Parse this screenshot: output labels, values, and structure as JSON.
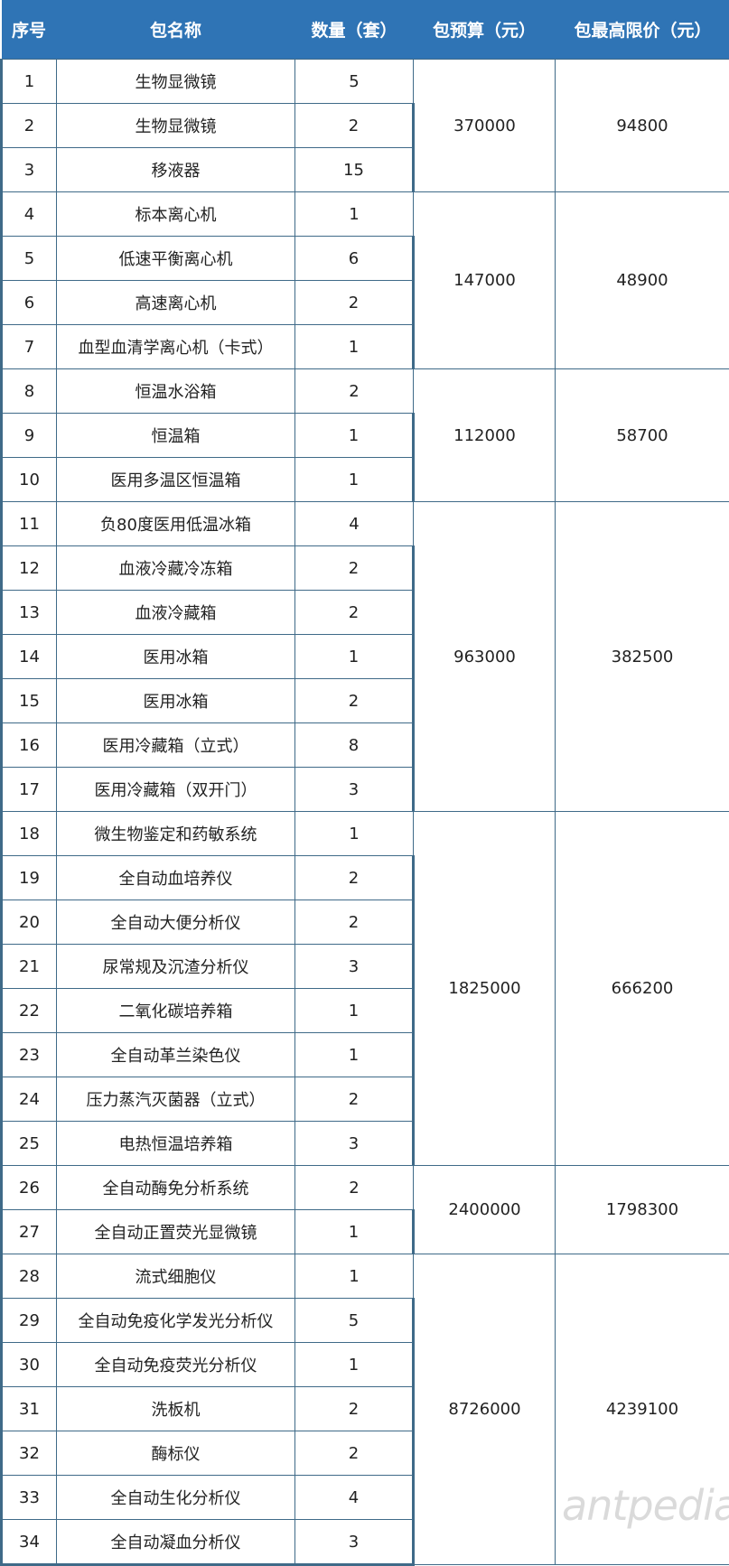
{
  "headers": [
    "序号",
    "包名称",
    "数量（套）",
    "包预算（元）",
    "包最高限价（元）"
  ],
  "groups": [
    {
      "budget": "370000",
      "max_price": "94800",
      "items": [
        [
          "1",
          "生物显微镜",
          "5"
        ],
        [
          "2",
          "生物显微镜",
          "2"
        ],
        [
          "3",
          "移液器",
          "15"
        ]
      ]
    },
    {
      "budget": "147000",
      "max_price": "48900",
      "items": [
        [
          "4",
          "标本离心机",
          "1"
        ],
        [
          "5",
          "低速平衡离心机",
          "6"
        ],
        [
          "6",
          "高速离心机",
          "2"
        ],
        [
          "7",
          "血型血清学离心机（卡式）",
          "1"
        ]
      ]
    },
    {
      "budget": "112000",
      "max_price": "58700",
      "items": [
        [
          "8",
          "恒温水浴箱",
          "2"
        ],
        [
          "9",
          "恒温箱",
          "1"
        ],
        [
          "10",
          "医用多温区恒温箱",
          "1"
        ]
      ]
    },
    {
      "budget": "963000",
      "max_price": "382500",
      "items": [
        [
          "11",
          "负80度医用低温冰箱",
          "4"
        ],
        [
          "12",
          "血液冷藏冷冻箱",
          "2"
        ],
        [
          "13",
          "血液冷藏箱",
          "2"
        ],
        [
          "14",
          "医用冰箱",
          "1"
        ],
        [
          "15",
          "医用冰箱",
          "2"
        ],
        [
          "16",
          "医用冷藏箱（立式）",
          "8"
        ],
        [
          "17",
          "医用冷藏箱（双开门）",
          "3"
        ]
      ]
    },
    {
      "budget": "1825000",
      "max_price": "666200",
      "items": [
        [
          "18",
          "微生物鉴定和药敏系统",
          "1"
        ],
        [
          "19",
          "全自动血培养仪",
          "2"
        ],
        [
          "20",
          "全自动大便分析仪",
          "2"
        ],
        [
          "21",
          "尿常规及沉渣分析仪",
          "3"
        ],
        [
          "22",
          "二氧化碳培养箱",
          "1"
        ],
        [
          "23",
          "全自动革兰染色仪",
          "1"
        ],
        [
          "24",
          "压力蒸汽灭菌器（立式）",
          "2"
        ],
        [
          "25",
          "电热恒温培养箱",
          "3"
        ]
      ]
    },
    {
      "budget": "2400000",
      "max_price": "1798300",
      "items": [
        [
          "26",
          "全自动酶免分析系统",
          "2"
        ],
        [
          "27",
          "全自动正置荧光显微镜",
          "1"
        ]
      ]
    },
    {
      "budget": "8726000",
      "max_price": "4239100",
      "items": [
        [
          "28",
          "流式细胞仪",
          "1"
        ],
        [
          "29",
          "全自动免疫化学发光分析仪",
          "5"
        ],
        [
          "30",
          "全自动免疫荧光分析仪",
          "1"
        ],
        [
          "31",
          "洗板机",
          "2"
        ],
        [
          "32",
          "酶标仪",
          "2"
        ],
        [
          "33",
          "全自动生化分析仪",
          "4"
        ],
        [
          "34",
          "全自动凝血分析仪",
          "3"
        ]
      ]
    }
  ],
  "watermark": "antpedia",
  "colors": {
    "header_bg": "#2f74b5",
    "border": "#3f6a88"
  }
}
